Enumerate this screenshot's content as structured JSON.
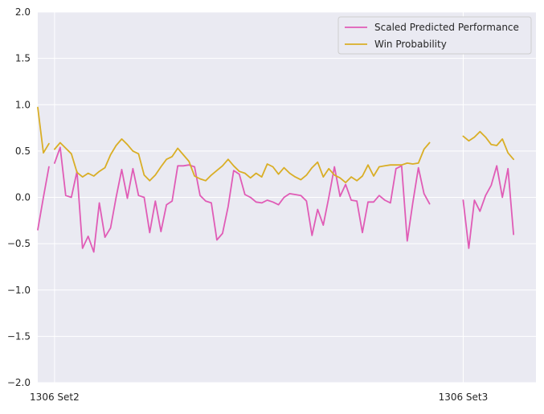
{
  "chart_data": {
    "type": "line",
    "grid": true,
    "legend_position": "upper right",
    "ylim": [
      -2.0,
      2.0
    ],
    "y_ticks": [
      "2.0",
      "1.5",
      "1.0",
      "0.5",
      "0.0",
      "−0.5",
      "−1.0",
      "−1.5",
      "−2.0"
    ],
    "y_tick_values": [
      2.0,
      1.5,
      1.0,
      0.5,
      0.0,
      -0.5,
      -1.0,
      -1.5,
      -2.0
    ],
    "xlim": [
      -3,
      86
    ],
    "x_ticks": [
      {
        "label": "1306 Set2",
        "value": 0
      },
      {
        "label": "1306 Set3",
        "value": 73
      }
    ],
    "series": [
      {
        "name": "Scaled Predicted Performance",
        "color": "#e05cb6",
        "segments": [
          {
            "x_start": -3,
            "values": [
              -0.35,
              0.0,
              0.33
            ]
          },
          {
            "x_start": 0,
            "values": [
              0.37,
              0.54,
              0.02,
              0.0,
              0.28,
              -0.55,
              -0.42,
              -0.59,
              -0.06,
              -0.43,
              -0.33,
              0.0,
              0.3,
              -0.01,
              0.31,
              0.02,
              0.0,
              -0.38,
              -0.04,
              -0.37,
              -0.08,
              -0.04,
              0.34,
              0.34,
              0.35,
              0.33,
              0.02,
              -0.04,
              -0.06,
              -0.46,
              -0.39,
              -0.1,
              0.29,
              0.25,
              0.03,
              0.0,
              -0.05,
              -0.06,
              -0.03,
              -0.05,
              -0.08,
              0.0,
              0.04,
              0.03,
              0.02,
              -0.04,
              -0.41,
              -0.13,
              -0.3,
              0.0,
              0.33,
              0.01,
              0.14,
              -0.03,
              -0.04,
              -0.38,
              -0.05,
              -0.05,
              0.02,
              -0.03,
              -0.06,
              0.31,
              0.34,
              -0.47,
              -0.06,
              0.32,
              0.04,
              -0.07
            ]
          },
          {
            "x_start": 73,
            "values": [
              -0.03,
              -0.55,
              -0.03,
              -0.15,
              0.02,
              0.13,
              0.34,
              0.0,
              0.31,
              -0.4
            ]
          }
        ]
      },
      {
        "name": "Win Probability",
        "color": "#d9ae26",
        "segments": [
          {
            "x_start": -3,
            "values": [
              0.97,
              0.48,
              0.58
            ]
          },
          {
            "x_start": 0,
            "values": [
              0.52,
              0.59,
              0.53,
              0.47,
              0.27,
              0.22,
              0.26,
              0.23,
              0.28,
              0.32,
              0.46,
              0.56,
              0.63,
              0.57,
              0.5,
              0.47,
              0.24,
              0.18,
              0.24,
              0.33,
              0.41,
              0.44,
              0.53,
              0.46,
              0.39,
              0.23,
              0.2,
              0.18,
              0.24,
              0.29,
              0.34,
              0.41,
              0.34,
              0.28,
              0.26,
              0.21,
              0.26,
              0.22,
              0.36,
              0.33,
              0.25,
              0.32,
              0.26,
              0.22,
              0.19,
              0.24,
              0.32,
              0.38,
              0.22,
              0.31,
              0.24,
              0.21,
              0.16,
              0.22,
              0.18,
              0.23,
              0.35,
              0.23,
              0.33,
              0.34,
              0.35,
              0.35,
              0.35,
              0.37,
              0.36,
              0.37,
              0.52,
              0.59
            ]
          },
          {
            "x_start": 73,
            "values": [
              0.66,
              0.61,
              0.65,
              0.71,
              0.65,
              0.57,
              0.56,
              0.63,
              0.48,
              0.41
            ]
          }
        ]
      }
    ]
  }
}
